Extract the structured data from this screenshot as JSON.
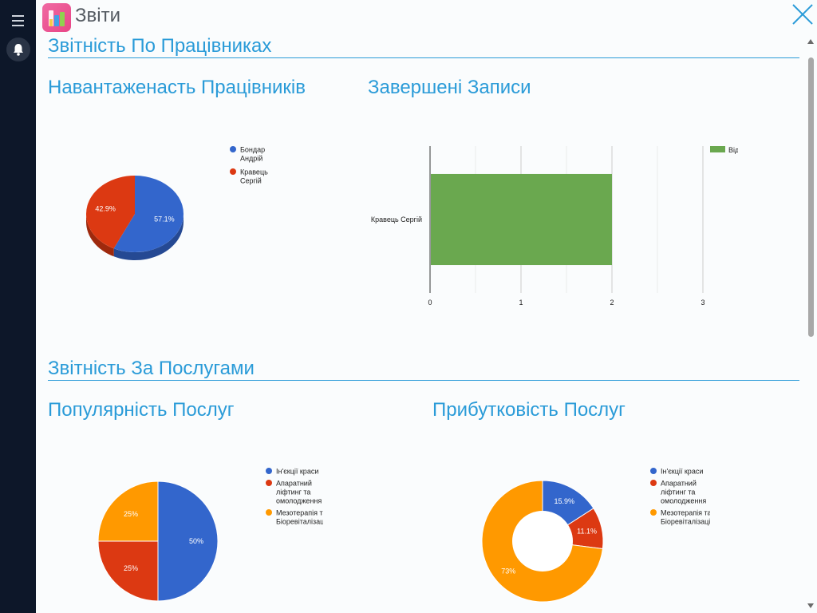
{
  "header": {
    "app_title": "Звіти",
    "icons": {
      "menu": "menu-icon",
      "bell": "bell-icon",
      "logo": "reports-app-icon",
      "close": "close-icon"
    }
  },
  "sections": {
    "employees": "Звітність По Працівниках",
    "services": "Звітність За Послугами"
  },
  "colors": {
    "accent": "#2a9bd8",
    "blue": "#3366cc",
    "red": "#dc3912",
    "orange": "#ff9900",
    "green": "#6aa84f"
  },
  "chart_data": [
    {
      "id": "employee-workload",
      "type": "pie",
      "title": "Навантаженасть Працівників",
      "style": "3d",
      "slices": [
        {
          "label": "Бондар Андрій",
          "label_lines": [
            "Бондар",
            "Андрій"
          ],
          "value": 57.1,
          "display": "57.1%",
          "color": "#3366cc"
        },
        {
          "label": "Кравець Сергій",
          "label_lines": [
            "Кравець",
            "Сергій"
          ],
          "value": 42.9,
          "display": "42.9%",
          "color": "#dc3912"
        }
      ],
      "legend": "right"
    },
    {
      "id": "completed-records",
      "type": "bar",
      "orientation": "horizontal",
      "title": "Завершені Записи",
      "categories": [
        "Кравець Сергій"
      ],
      "series": [
        {
          "name": "Відбувся",
          "values": [
            2
          ],
          "color": "#6aa84f"
        }
      ],
      "xlim": [
        0,
        3
      ],
      "xticks": [
        "0",
        "1",
        "2",
        "3"
      ],
      "grid": true,
      "legend": "right"
    },
    {
      "id": "service-popularity",
      "type": "pie",
      "title": "Популярність Послуг",
      "slices": [
        {
          "label": "Ін'єкції краси",
          "label_lines": [
            "Ін'єкції краси"
          ],
          "value": 50,
          "display": "50%",
          "color": "#3366cc"
        },
        {
          "label": "Апаратний ліфтинг та омолодження",
          "label_lines": [
            "Апаратний",
            "ліфтинг та",
            "омолодження"
          ],
          "value": 25,
          "display": "25%",
          "color": "#dc3912"
        },
        {
          "label": "Мезотерапія та Біоревіталізація",
          "label_lines": [
            "Мезотерапія та",
            "Біоревіталізація"
          ],
          "value": 25,
          "display": "25%",
          "color": "#ff9900"
        }
      ],
      "legend": "right"
    },
    {
      "id": "service-profitability",
      "type": "pie",
      "style": "donut",
      "title": "Прибутковість Послуг",
      "slices": [
        {
          "label": "Ін'єкції краси",
          "label_lines": [
            "Ін'єкції краси"
          ],
          "value": 15.9,
          "display": "15.9%",
          "color": "#3366cc"
        },
        {
          "label": "Апаратний ліфтинг та омолодження",
          "label_lines": [
            "Апаратний",
            "ліфтинг та",
            "омолодження"
          ],
          "value": 11.1,
          "display": "11.1%",
          "color": "#dc3912"
        },
        {
          "label": "Мезотерапія та Біоревіталізація",
          "label_lines": [
            "Мезотерапія та",
            "Біоревіталізація"
          ],
          "value": 73,
          "display": "73%",
          "color": "#ff9900"
        }
      ],
      "legend": "right"
    }
  ]
}
